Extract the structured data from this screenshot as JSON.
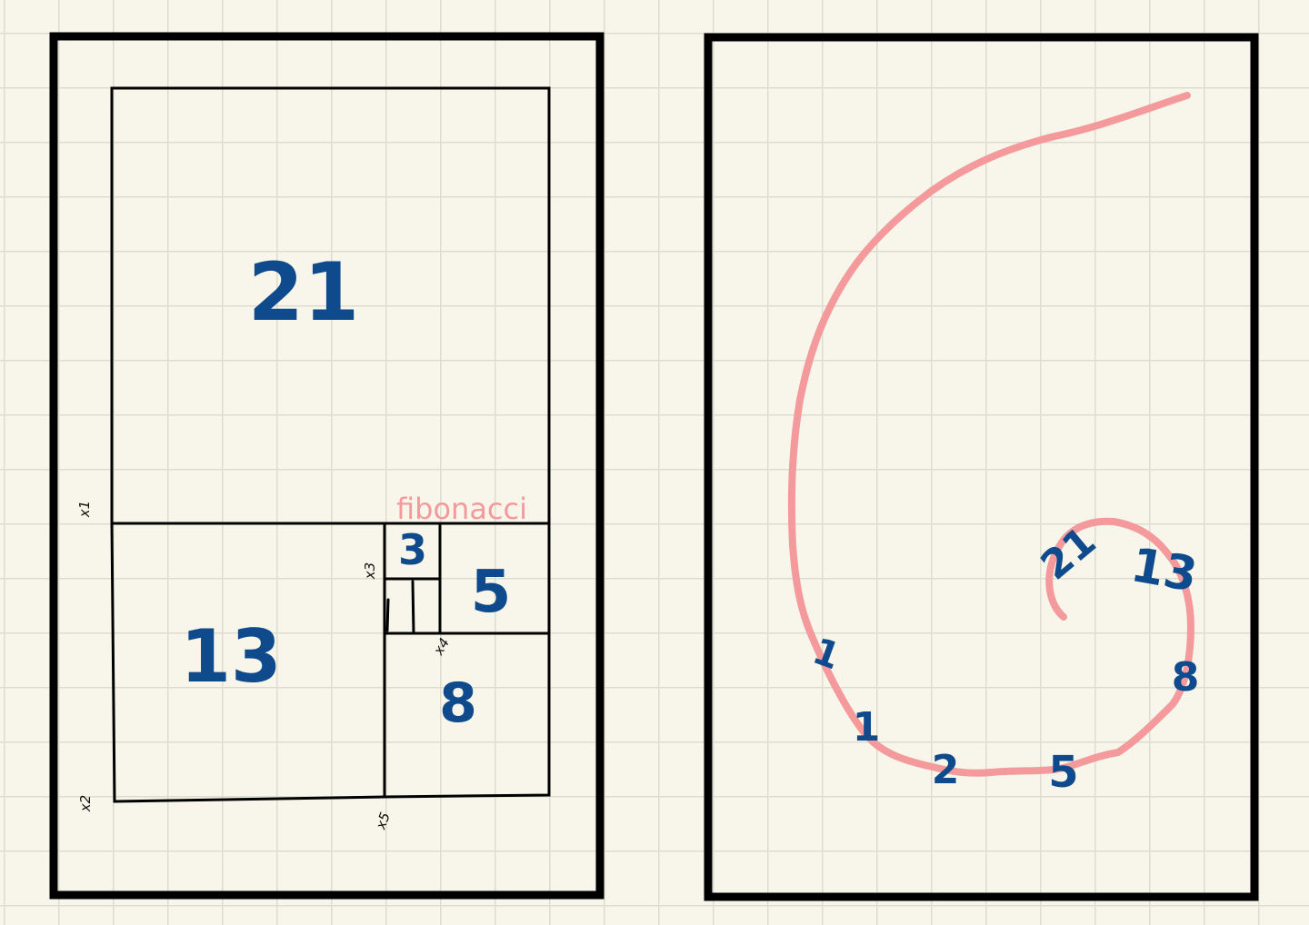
{
  "left_panel": {
    "label_fibonacci": "fibonacci",
    "squares": {
      "sq21": "21",
      "sq13": "13",
      "sq3": "3",
      "sq5": "5",
      "sq8": "8"
    },
    "point_labels": {
      "p1": "x1",
      "p2": "x2",
      "p3": "x3",
      "p4": "x4",
      "p5": "x5"
    }
  },
  "right_panel": {
    "spiral_labels": {
      "s1a": "1",
      "s1b": "1",
      "s2": "2",
      "s5": "5",
      "s8": "8",
      "s13": "13",
      "s21": "21"
    }
  },
  "colors": {
    "ink_blue": "#0e4a8c",
    "spiral_pink": "#f49a9c",
    "paper": "#f8f6ea",
    "frame_black": "#000000"
  }
}
